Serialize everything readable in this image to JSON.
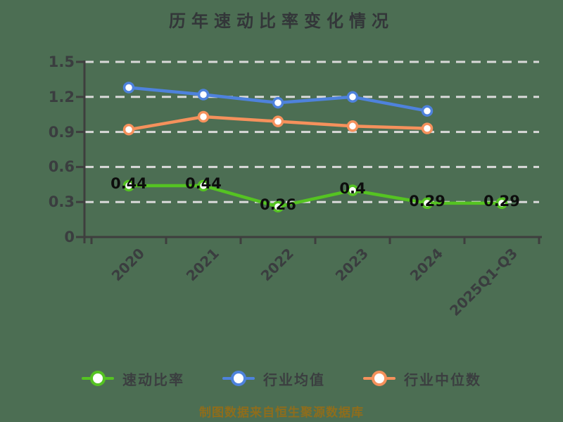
{
  "title": "历年速动比率变化情况",
  "footer": "制图数据来自恒生聚源数据库",
  "colors": {
    "background": "#4C6E53",
    "quick_ratio": "#55C322",
    "industry_avg": "#4E82DC",
    "industry_median": "#F5915C",
    "grid": "#D9D9D9",
    "axis": "#3E3E3E",
    "marker_fill": "#FFFFFF",
    "title_text": "#333639",
    "tick_label_text": "#3A3D3F",
    "data_label_text": "#0D0D0D",
    "legend_text": "#3B3E40",
    "footer_text": "#8E6D1C"
  },
  "chart_data": {
    "type": "line",
    "title": "历年速动比率变化情况",
    "categories": [
      "2020",
      "2021",
      "2022",
      "2023",
      "2024",
      "2025Q1-Q3"
    ],
    "series": [
      {
        "name": "速动比率",
        "color_key": "quick_ratio",
        "values": [
          0.44,
          0.44,
          0.26,
          0.4,
          0.29,
          0.29
        ],
        "point_labels": [
          "0.44",
          "0.44",
          "0.26",
          "0.4",
          "0.29",
          "0.29"
        ]
      },
      {
        "name": "行业均值",
        "color_key": "industry_avg",
        "values": [
          1.28,
          1.22,
          1.15,
          1.2,
          1.08,
          null
        ]
      },
      {
        "name": "行业中位数",
        "color_key": "industry_median",
        "values": [
          0.92,
          1.03,
          0.99,
          0.95,
          0.93,
          null
        ]
      }
    ],
    "ylim": [
      0,
      1.5
    ],
    "yticks": [
      0,
      0.3,
      0.6,
      0.9,
      1.2,
      1.5
    ],
    "ytick_labels": [
      "0",
      "0.3",
      "0.6",
      "0.9",
      "1.2",
      "1.5"
    ],
    "grid": "horizontal-dashed",
    "legend_position": "bottom",
    "xlabel": "",
    "ylabel": ""
  }
}
